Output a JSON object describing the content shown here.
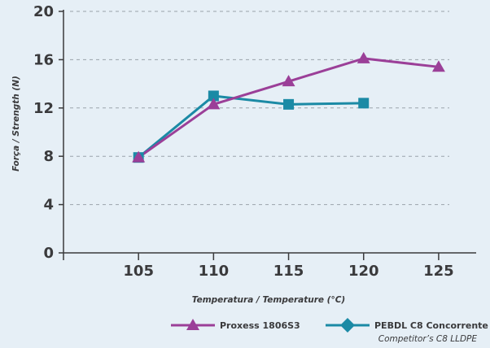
{
  "chart_data": {
    "type": "line",
    "title": "",
    "xlabel": "Temperatura / Temperature (°C)",
    "ylabel": "Força / Strength (N)",
    "x": [
      105,
      110,
      115,
      120,
      125
    ],
    "x_tick_labels": [
      "105",
      "110",
      "115",
      "120",
      "125"
    ],
    "y_tick_labels": [
      "0",
      "4",
      "8",
      "12",
      "16",
      "20"
    ],
    "xlim": [
      100,
      127.5
    ],
    "ylim": [
      0,
      20
    ],
    "grid": "horizontal dashed",
    "legend_placement": "bottom",
    "series": [
      {
        "name": "Proxess 1806S3",
        "marker": "triangle",
        "color": "#9b3f98",
        "values": [
          7.9,
          12.3,
          14.2,
          16.1,
          15.4
        ]
      },
      {
        "name": "PEBDL C8 Concorrente",
        "subtitle": "Competitor’s C8 LLDPE",
        "marker": "square",
        "legend_marker": "diamond",
        "color": "#1b8aa5",
        "values": [
          7.9,
          13.0,
          12.3,
          12.4,
          null
        ]
      }
    ]
  }
}
